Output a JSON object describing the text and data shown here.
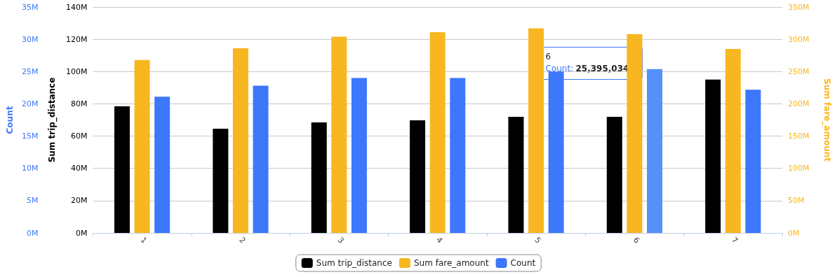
{
  "chart_data": {
    "type": "bar",
    "categories": [
      "1",
      "2",
      "3",
      "4",
      "5",
      "6",
      "7"
    ],
    "series": [
      {
        "name": "Sum trip_distance",
        "color": "#000000",
        "values": [
          78500000,
          64600000,
          68500000,
          69800000,
          72000000,
          72000000,
          95000000
        ]
      },
      {
        "name": "Sum fare_amount",
        "color": "#f8b720",
        "axis": "y2",
        "values": [
          268000000,
          286000000,
          304000000,
          311000000,
          317000000,
          308000000,
          285000000
        ]
      },
      {
        "name": "Count",
        "color": "#3d77fb",
        "axis": "y3",
        "colors": [
          "#3d77fb",
          "#3d77fb",
          "#3d77fb",
          "#3d77fb",
          "#3d77fb",
          "#5590fc",
          "#3d77fb"
        ],
        "values": [
          21100000,
          22800000,
          24000000,
          24000000,
          25000000,
          25395034,
          22200000
        ]
      }
    ],
    "ylabel": "Sum trip_distance",
    "y2label": "Sum fare_amount",
    "y3label": "Count",
    "ylim": [
      0,
      140000000
    ],
    "yticks": [
      {
        "value": 0,
        "label": "0M"
      },
      {
        "value": 20000000,
        "label": "20M"
      },
      {
        "value": 40000000,
        "label": "40M"
      },
      {
        "value": 60000000,
        "label": "60M"
      },
      {
        "value": 80000000,
        "label": "80M"
      },
      {
        "value": 100000000,
        "label": "100M"
      },
      {
        "value": 120000000,
        "label": "120M"
      },
      {
        "value": 140000000,
        "label": "140M"
      }
    ],
    "y2lim": [
      0,
      350000000
    ],
    "y2ticks": [
      {
        "value": 0,
        "label": "0M"
      },
      {
        "value": 50000000,
        "label": "50M"
      },
      {
        "value": 100000000,
        "label": "100M"
      },
      {
        "value": 150000000,
        "label": "150M"
      },
      {
        "value": 200000000,
        "label": "200M"
      },
      {
        "value": 250000000,
        "label": "250M"
      },
      {
        "value": 300000000,
        "label": "300M"
      },
      {
        "value": 350000000,
        "label": "350M"
      }
    ],
    "y3lim": [
      0,
      35000000
    ],
    "y3ticks": [
      {
        "value": 0,
        "label": "0M"
      },
      {
        "value": 5000000,
        "label": "5M"
      },
      {
        "value": 10000000,
        "label": "10M"
      },
      {
        "value": 15000000,
        "label": "15M"
      },
      {
        "value": 20000000,
        "label": "20M"
      },
      {
        "value": 25000000,
        "label": "25M"
      },
      {
        "value": 30000000,
        "label": "30M"
      },
      {
        "value": 35000000,
        "label": "35M"
      }
    ],
    "annotations": [
      "6",
      "Count: 25,395,034"
    ],
    "grid": "y",
    "legend": "bottom"
  }
}
